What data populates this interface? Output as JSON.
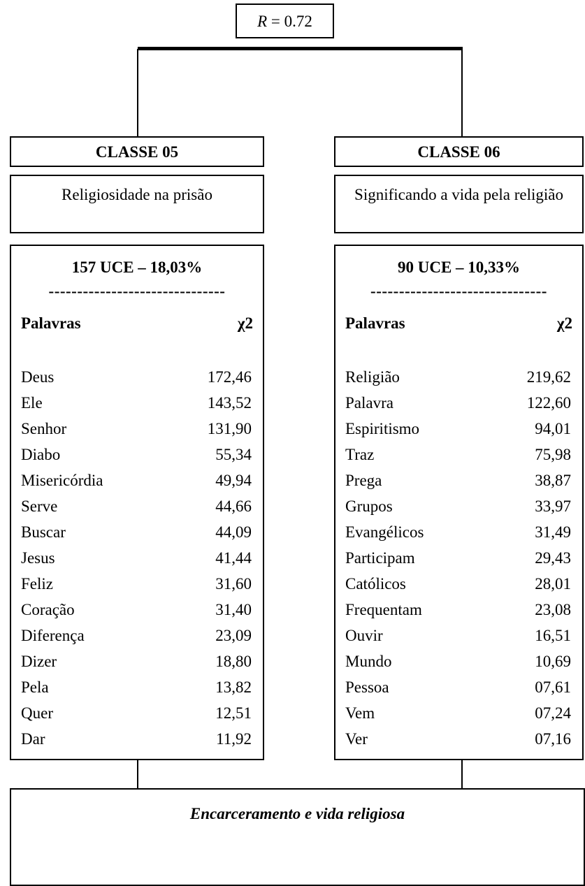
{
  "root": {
    "variable": "R",
    "value": "= 0.72"
  },
  "classes": [
    {
      "title": "CLASSE 05",
      "description": "Religiosidade na prisão",
      "uce": "157 UCE – 18,03%",
      "separator": "-------------------------------",
      "header": {
        "word": "Palavras",
        "score": "χ2"
      },
      "rows": [
        [
          "Deus",
          "172,46"
        ],
        [
          "Ele",
          "143,52"
        ],
        [
          "Senhor",
          "131,90"
        ],
        [
          "Diabo",
          "55,34"
        ],
        [
          "Misericórdia",
          "49,94"
        ],
        [
          "Serve",
          "44,66"
        ],
        [
          "Buscar",
          "44,09"
        ],
        [
          "Jesus",
          "41,44"
        ],
        [
          "Feliz",
          "31,60"
        ],
        [
          "Coração",
          "31,40"
        ],
        [
          "Diferença",
          "23,09"
        ],
        [
          "Dizer",
          "18,80"
        ],
        [
          "Pela",
          "13,82"
        ],
        [
          "Quer",
          "12,51"
        ],
        [
          "Dar",
          "11,92"
        ]
      ]
    },
    {
      "title": "CLASSE 06",
      "description": "Significando a vida pela religião",
      "uce": "90 UCE – 10,33%",
      "separator": "-------------------------------",
      "header": {
        "word": "Palavras",
        "score": "χ2"
      },
      "rows": [
        [
          "Religião",
          "219,62"
        ],
        [
          "Palavra",
          "122,60"
        ],
        [
          "Espiritismo",
          "94,01"
        ],
        [
          "Traz",
          "75,98"
        ],
        [
          "Prega",
          "38,87"
        ],
        [
          "Grupos",
          "33,97"
        ],
        [
          "Evangélicos",
          "31,49"
        ],
        [
          "Participam",
          "29,43"
        ],
        [
          "Católicos",
          "28,01"
        ],
        [
          "Frequentam",
          "23,08"
        ],
        [
          "Ouvir",
          "16,51"
        ],
        [
          "Mundo",
          "10,69"
        ],
        [
          "Pessoa",
          "07,61"
        ],
        [
          "Vem",
          "07,24"
        ],
        [
          "Ver",
          "07,16"
        ]
      ]
    }
  ],
  "footer": {
    "title": "Encarceramento e vida religiosa"
  }
}
